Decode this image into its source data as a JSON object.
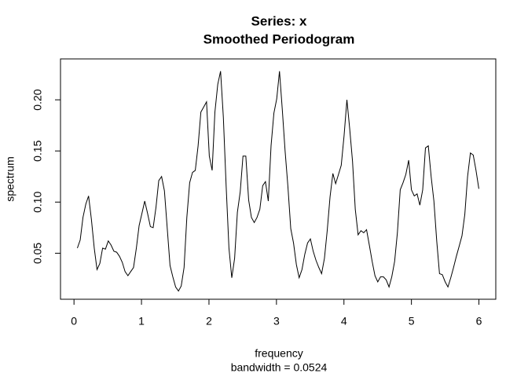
{
  "chart_data": {
    "type": "line",
    "title": "Series: x",
    "subtitle": "Smoothed Periodogram",
    "x_label": "frequency",
    "annotation": "bandwidth = 0.0524",
    "y_label": "spectrum",
    "color": "#000000",
    "xlim": [
      -0.2,
      6.25
    ],
    "ylim": [
      0.005,
      0.24
    ],
    "xticks": [
      0,
      1,
      2,
      3,
      4,
      5,
      6
    ],
    "yticks": [
      0.05,
      {
        "value": 0.1,
        "label": "0.10"
      },
      0.15,
      {
        "value": 0.2,
        "label": "0.20"
      }
    ],
    "x": [
      0.05,
      0.092,
      0.133,
      0.175,
      0.216,
      0.258,
      0.3,
      0.341,
      0.383,
      0.424,
      0.466,
      0.508,
      0.549,
      0.591,
      0.632,
      0.674,
      0.716,
      0.757,
      0.799,
      0.84,
      0.882,
      0.924,
      0.965,
      1.007,
      1.048,
      1.09,
      1.132,
      1.173,
      1.215,
      1.256,
      1.298,
      1.34,
      1.381,
      1.423,
      1.464,
      1.506,
      1.548,
      1.589,
      1.631,
      1.672,
      1.714,
      1.756,
      1.797,
      1.839,
      1.88,
      1.922,
      1.964,
      2.005,
      2.047,
      2.088,
      2.13,
      2.172,
      2.213,
      2.255,
      2.296,
      2.338,
      2.38,
      2.421,
      2.463,
      2.504,
      2.546,
      2.588,
      2.629,
      2.671,
      2.712,
      2.754,
      2.796,
      2.837,
      2.879,
      2.92,
      2.962,
      3.004,
      3.045,
      3.087,
      3.128,
      3.17,
      3.212,
      3.253,
      3.295,
      3.336,
      3.378,
      3.42,
      3.461,
      3.503,
      3.544,
      3.586,
      3.628,
      3.669,
      3.711,
      3.752,
      3.794,
      3.836,
      3.877,
      3.919,
      3.96,
      4.002,
      4.044,
      4.085,
      4.127,
      4.168,
      4.21,
      4.252,
      4.293,
      4.335,
      4.376,
      4.418,
      4.46,
      4.501,
      4.543,
      4.584,
      4.626,
      4.668,
      4.709,
      4.751,
      4.792,
      4.834,
      4.876,
      4.917,
      4.959,
      5.0,
      5.042,
      5.084,
      5.125,
      5.167,
      5.208,
      5.25,
      5.292,
      5.333,
      5.375,
      5.416,
      5.458,
      5.5,
      5.541,
      5.583,
      5.624,
      5.666,
      5.708,
      5.749,
      5.791,
      5.832,
      5.874,
      5.916,
      5.957,
      5.999
    ],
    "values": [
      0.055,
      0.063,
      0.085,
      0.098,
      0.106,
      0.083,
      0.055,
      0.034,
      0.04,
      0.055,
      0.054,
      0.062,
      0.058,
      0.052,
      0.051,
      0.047,
      0.041,
      0.032,
      0.028,
      0.032,
      0.036,
      0.055,
      0.077,
      0.089,
      0.101,
      0.089,
      0.076,
      0.075,
      0.095,
      0.121,
      0.125,
      0.111,
      0.075,
      0.038,
      0.027,
      0.017,
      0.013,
      0.018,
      0.036,
      0.085,
      0.119,
      0.129,
      0.131,
      0.155,
      0.188,
      0.193,
      0.198,
      0.145,
      0.131,
      0.188,
      0.215,
      0.228,
      0.183,
      0.115,
      0.055,
      0.026,
      0.045,
      0.09,
      0.11,
      0.145,
      0.145,
      0.102,
      0.085,
      0.08,
      0.085,
      0.093,
      0.116,
      0.12,
      0.101,
      0.155,
      0.187,
      0.201,
      0.228,
      0.19,
      0.15,
      0.115,
      0.074,
      0.06,
      0.039,
      0.026,
      0.034,
      0.049,
      0.06,
      0.064,
      0.052,
      0.043,
      0.036,
      0.03,
      0.045,
      0.072,
      0.105,
      0.128,
      0.118,
      0.127,
      0.136,
      0.165,
      0.2,
      0.172,
      0.14,
      0.093,
      0.068,
      0.072,
      0.07,
      0.073,
      0.058,
      0.042,
      0.028,
      0.022,
      0.027,
      0.027,
      0.024,
      0.017,
      0.027,
      0.042,
      0.07,
      0.112,
      0.119,
      0.127,
      0.141,
      0.112,
      0.106,
      0.108,
      0.097,
      0.112,
      0.153,
      0.155,
      0.125,
      0.101,
      0.062,
      0.03,
      0.029,
      0.022,
      0.017,
      0.026,
      0.036,
      0.047,
      0.057,
      0.067,
      0.088,
      0.125,
      0.148,
      0.146,
      0.131,
      0.113
    ]
  }
}
